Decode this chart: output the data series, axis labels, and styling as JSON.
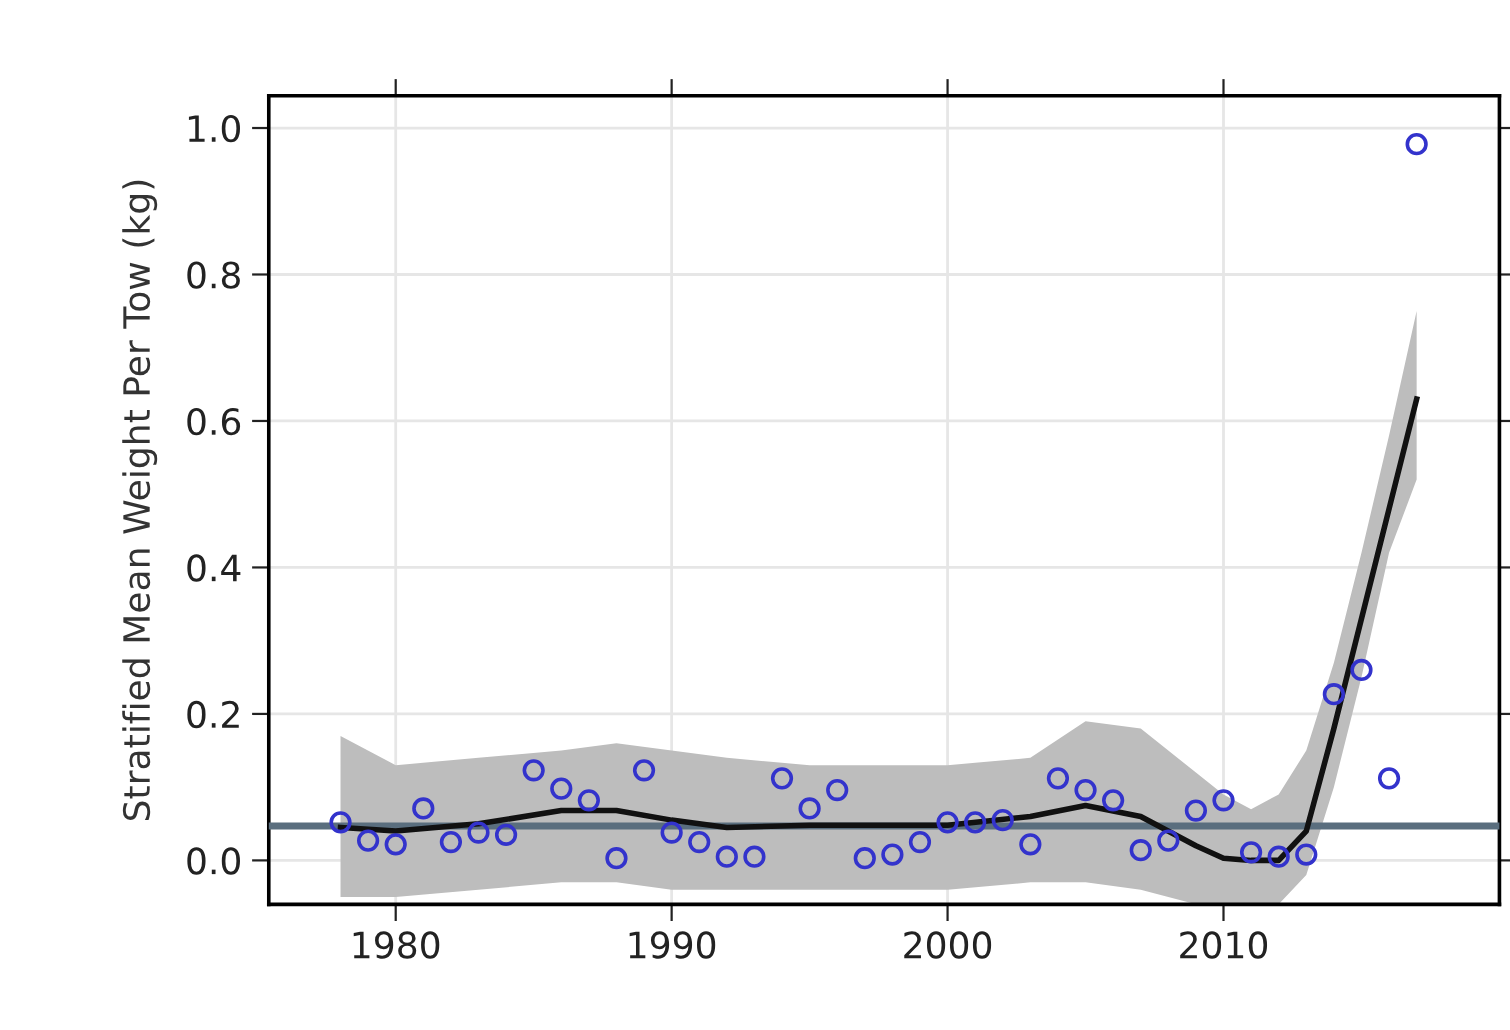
{
  "chart_data": {
    "type": "scatter",
    "ylabel": "Stratified Mean Weight Per Tow (kg)",
    "xlim": [
      1975.4,
      2020
    ],
    "ylim": [
      -0.06,
      1.044
    ],
    "xticks": [
      1980,
      1990,
      2000,
      2010
    ],
    "yticks": [
      {
        "value": 0,
        "label": "0.0"
      },
      {
        "value": 0.2,
        "label": "0.2"
      },
      {
        "value": 0.4,
        "label": "0.4"
      },
      {
        "value": 0.6,
        "label": "0.6"
      },
      {
        "value": 0.8,
        "label": "0.8"
      },
      {
        "value": 1,
        "label": "1.0"
      }
    ],
    "grid": true,
    "series": [
      {
        "type": "line",
        "color": "#111111",
        "line_style": "solid",
        "marker": "none",
        "x": [
          1978,
          1980,
          1983,
          1986,
          1988,
          1990,
          1992,
          1995,
          2000,
          2003,
          2005,
          2007,
          2009,
          2010,
          2011,
          2012,
          2013,
          2014,
          2015,
          2016,
          2017
        ],
        "values": [
          0.045,
          0.04,
          0.05,
          0.068,
          0.068,
          0.055,
          0.045,
          0.048,
          0.048,
          0.06,
          0.075,
          0.06,
          0.02,
          0.003,
          0.0,
          0.0,
          0.04,
          0.18,
          0.33,
          0.48,
          0.63
        ],
        "lower": [
          -0.05,
          -0.05,
          -0.04,
          -0.03,
          -0.03,
          -0.04,
          -0.04,
          -0.04,
          -0.04,
          -0.03,
          -0.03,
          -0.04,
          -0.06,
          -0.06,
          -0.06,
          -0.06,
          -0.02,
          0.1,
          0.25,
          0.42,
          0.52
        ],
        "upper": [
          0.17,
          0.13,
          0.14,
          0.15,
          0.16,
          0.15,
          0.14,
          0.13,
          0.13,
          0.14,
          0.19,
          0.18,
          0.12,
          0.09,
          0.07,
          0.09,
          0.15,
          0.27,
          0.42,
          0.58,
          0.75
        ]
      },
      {
        "color": "#3333cc",
        "marker": "circle",
        "x": [
          1978,
          1979,
          1980,
          1981,
          1982,
          1983,
          1984,
          1985,
          1986,
          1987,
          1988,
          1989,
          1990,
          1991,
          1992,
          1993,
          1994,
          1995,
          1996,
          1997,
          1998,
          1999,
          2000,
          2001,
          2002,
          2003,
          2004,
          2005,
          2006,
          2007,
          2008,
          2009,
          2010,
          2011,
          2012,
          2013,
          2014,
          2015,
          2016,
          2017
        ],
        "values": [
          0.052,
          0.027,
          0.022,
          0.071,
          0.025,
          0.038,
          0.035,
          0.123,
          0.098,
          0.082,
          0.003,
          0.123,
          0.038,
          0.025,
          0.005,
          0.005,
          0.112,
          0.071,
          0.096,
          0.003,
          0.008,
          0.025,
          0.052,
          0.052,
          0.055,
          0.022,
          0.112,
          0.096,
          0.082,
          0.014,
          0.027,
          0.068,
          0.082,
          0.011,
          0.005,
          0.008,
          0.227,
          0.26,
          0.112,
          0.978
        ]
      }
    ],
    "ref_lines": [
      {
        "axis": "y",
        "value": 0.047,
        "color": "#5a6e7e"
      }
    ]
  }
}
